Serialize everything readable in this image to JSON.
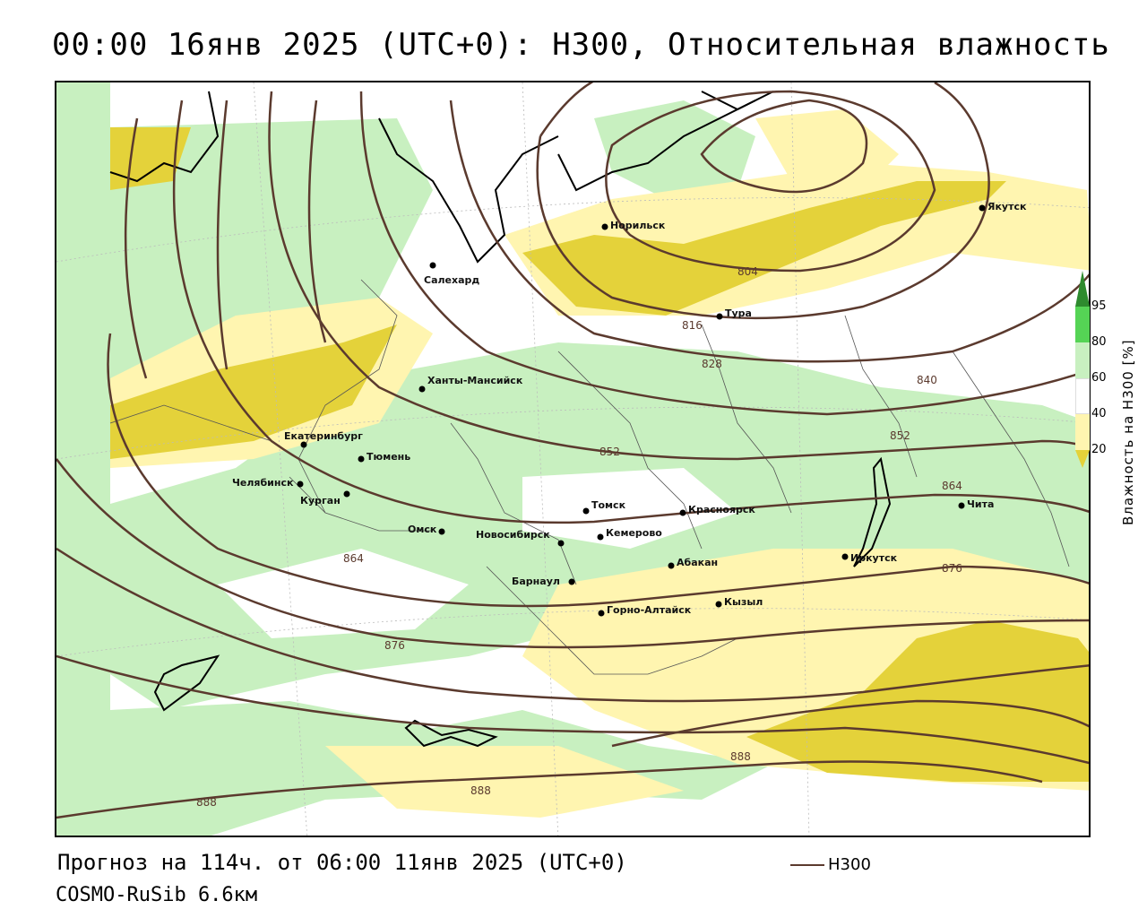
{
  "title": "00:00 16янв 2025 (UTC+0): H300, Относительная влажность",
  "footer": {
    "forecast": "Прогноз на 114ч. от 06:00 11янв 2025 (UTC+0)",
    "model": "COSMO-RuSib 6.6км"
  },
  "series_legend": {
    "name": "H300",
    "color": "#5b3a2e"
  },
  "colorbar": {
    "label": "Влажность на H300 [%]",
    "ticks": [
      "95",
      "80",
      "60",
      "40",
      "20"
    ],
    "bands": [
      {
        "range": "95+",
        "color": "#2e8b2e"
      },
      {
        "range": "80-95",
        "color": "#55d455"
      },
      {
        "range": "60-80",
        "color": "#c8f0c0"
      },
      {
        "range": "40-60",
        "color": "#ffffff"
      },
      {
        "range": "20-40",
        "color": "#fff5b0"
      },
      {
        "range": "0-20",
        "color": "#e4d23a"
      }
    ]
  },
  "cities": [
    {
      "name": "Норильск"
    },
    {
      "name": "Якутск"
    },
    {
      "name": "Салехард"
    },
    {
      "name": "Тура"
    },
    {
      "name": "Ханты-Мансийск"
    },
    {
      "name": "Екатеринбург"
    },
    {
      "name": "Тюмень"
    },
    {
      "name": "Челябинск"
    },
    {
      "name": "Курган"
    },
    {
      "name": "Омск"
    },
    {
      "name": "Новосибирск"
    },
    {
      "name": "Томск"
    },
    {
      "name": "Кемерово"
    },
    {
      "name": "Красноярск"
    },
    {
      "name": "Барнаул"
    },
    {
      "name": "Абакан"
    },
    {
      "name": "Горно-Алтайск"
    },
    {
      "name": "Кызыл"
    },
    {
      "name": "Иркутск"
    },
    {
      "name": "Чита"
    }
  ],
  "contour_labels": [
    "804",
    "816",
    "828",
    "840",
    "852",
    "852",
    "864",
    "864",
    "876",
    "876",
    "888",
    "888",
    "888"
  ]
}
